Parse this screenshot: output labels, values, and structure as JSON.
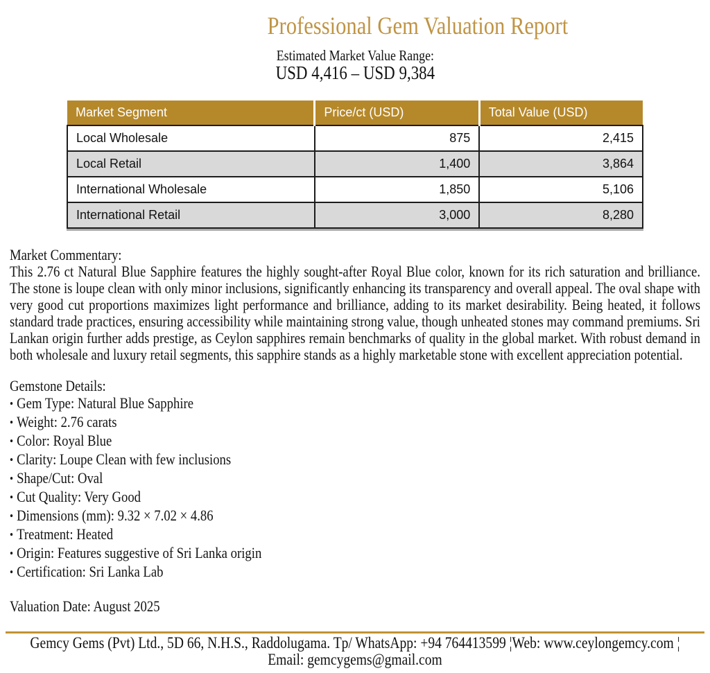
{
  "report": {
    "title": "Professional Gem Valuation Report",
    "value_range": {
      "label": "Estimated Market Value Range:",
      "value": "USD 4,416 – USD 9,384"
    }
  },
  "valuation_table": {
    "columns": [
      "Market Segment",
      "Price/ct (USD)",
      "Total Value (USD)"
    ],
    "rows": [
      {
        "segment": "Local Wholesale",
        "price": "875",
        "total": "2,415"
      },
      {
        "segment": "Local Retail",
        "price": "1,400",
        "total": "3,864"
      },
      {
        "segment": "International Wholesale",
        "price": "1,850",
        "total": "5,106"
      },
      {
        "segment": "International Retail",
        "price": "3,000",
        "total": "8,280"
      }
    ]
  },
  "commentary": {
    "heading": "Market Commentary:",
    "body": "This 2.76 ct Natural Blue Sapphire features the highly sought-after Royal Blue color, known for its rich saturation and brilliance. The stone is loupe clean with only minor inclusions, significantly enhancing its transparency and overall appeal. The oval shape with very good cut proportions maximizes light performance and brilliance, adding to its market desirability. Being heated, it follows standard trade practices, ensuring accessibility while maintaining strong value, though unheated stones may command premiums. Sri Lankan origin further adds prestige, as Ceylon sapphires remain benchmarks of quality in the global market. With robust demand in both wholesale and luxury retail segments, this sapphire stands as a highly marketable stone with excellent appreciation potential."
  },
  "details": {
    "heading": "Gemstone Details:",
    "items": [
      {
        "bullet": "•",
        "label": "Gem Type: Natural Blue Sapphire"
      },
      {
        "bullet": "•",
        "label": "Weight: 2.76 carats"
      },
      {
        "bullet": "•",
        "label": "Color: Royal Blue"
      },
      {
        "bullet": "•",
        "label": "Clarity: Loupe Clean with few inclusions"
      },
      {
        "bullet": "•",
        "label": "Shape/Cut: Oval"
      },
      {
        "bullet": "•",
        "label": "Cut Quality: Very Good"
      },
      {
        "bullet": "•",
        "label": "Dimensions (mm): 9.32 × 7.02 × 4.86"
      },
      {
        "bullet": "•",
        "label": "Treatment: Heated"
      },
      {
        "bullet": "•",
        "label": "Origin: Features suggestive of Sri Lanka origin"
      },
      {
        "bullet": "•",
        "label": "Certification: Sri Lanka Lab"
      }
    ]
  },
  "valuation_date": "Valuation Date: August 2025",
  "footer": {
    "line1": "Gemcy Gems (Pvt) Ltd., 5D 66, N.H.S., Raddolugama. Tp/ WhatsApp: +94 764413599 ¦Web: www.ceylongemcy.com ¦",
    "line2": "Email: gemcygems@gmail.com"
  },
  "colors": {
    "title_gold": "#BF9445",
    "table_header_gold": "#B5882A",
    "row_alt_gray": "#D9D9D9",
    "footer_rule_gold": "#C19232"
  }
}
